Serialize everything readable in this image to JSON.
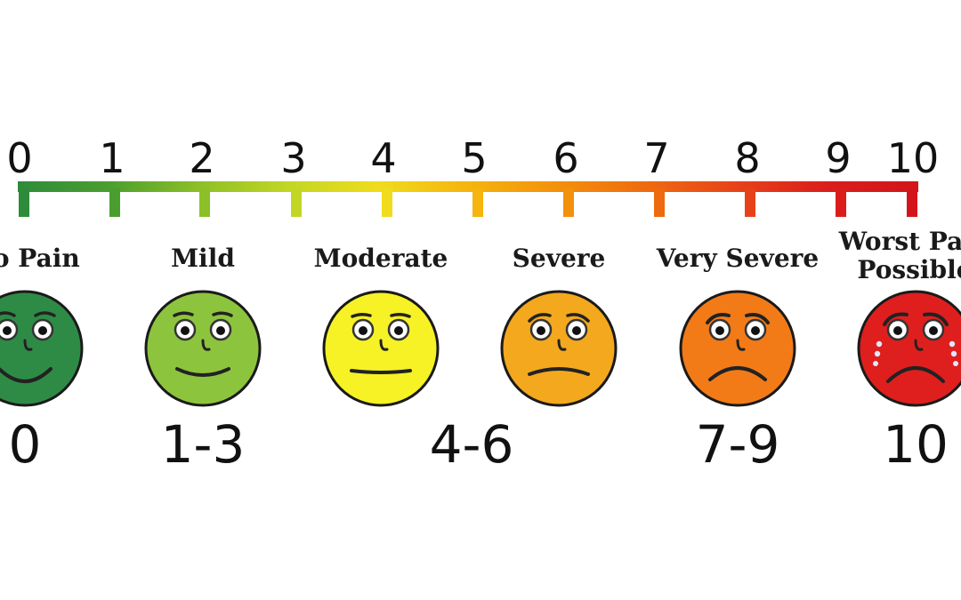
{
  "scale": {
    "numbers": [
      "0",
      "1",
      "2",
      "3",
      "4",
      "5",
      "6",
      "7",
      "8",
      "9",
      "10"
    ],
    "tick_colors": [
      "#2e8b3a",
      "#4a9e2f",
      "#8cbf28",
      "#c2d624",
      "#f0dc1c",
      "#f5b40e",
      "#f3900c",
      "#ee6a10",
      "#e7411a",
      "#da1d1b",
      "#d3141a"
    ]
  },
  "levels": [
    {
      "label": "No Pain",
      "range": "0",
      "face_color": "#2e8b46",
      "mood": "happy"
    },
    {
      "label": "Mild",
      "range": "1-3",
      "face_color": "#8dc43e",
      "mood": "smile"
    },
    {
      "label": "Moderate",
      "range": "4-6",
      "face_color": "#f6f226",
      "mood": "neutral"
    },
    {
      "label": "Severe",
      "range": "",
      "face_color": "#f3a81e",
      "mood": "sad"
    },
    {
      "label": "Very Severe",
      "range": "7-9",
      "face_color": "#f27b18",
      "mood": "very-sad"
    },
    {
      "label": "Worst Pain Possible",
      "label_lines": [
        "Worst Pain",
        "Possible"
      ],
      "range": "10",
      "face_color": "#de1f1e",
      "mood": "crying"
    }
  ]
}
